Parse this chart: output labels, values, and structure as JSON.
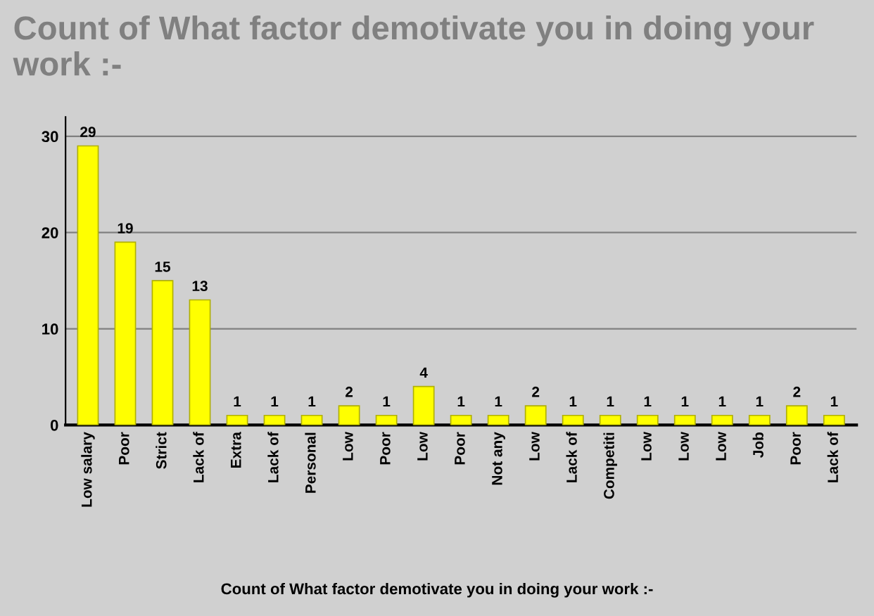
{
  "chart_data": {
    "type": "bar",
    "title": "Count of What factor demotivate you in doing your work :-",
    "xlabel": "Count of What factor demotivate you in doing your work :-",
    "categories": [
      "Low salary",
      "Poor",
      "Strict",
      "Lack of",
      "Extra",
      "Lack of",
      "Personal",
      "Low",
      "Poor",
      "Low",
      "Poor",
      "Not any",
      "Low",
      "Lack of",
      "Competiti",
      "Low",
      "Low",
      "Low",
      "Job",
      "Poor",
      "Lack of"
    ],
    "values": [
      29,
      19,
      15,
      13,
      1,
      1,
      1,
      2,
      1,
      4,
      1,
      1,
      2,
      1,
      1,
      1,
      1,
      1,
      1,
      2,
      1
    ],
    "color": "#ffff00",
    "ylim": [
      0,
      32
    ],
    "yticks": [
      0,
      10,
      20,
      30
    ],
    "grid": "y",
    "data_labels": true,
    "legend": false
  }
}
